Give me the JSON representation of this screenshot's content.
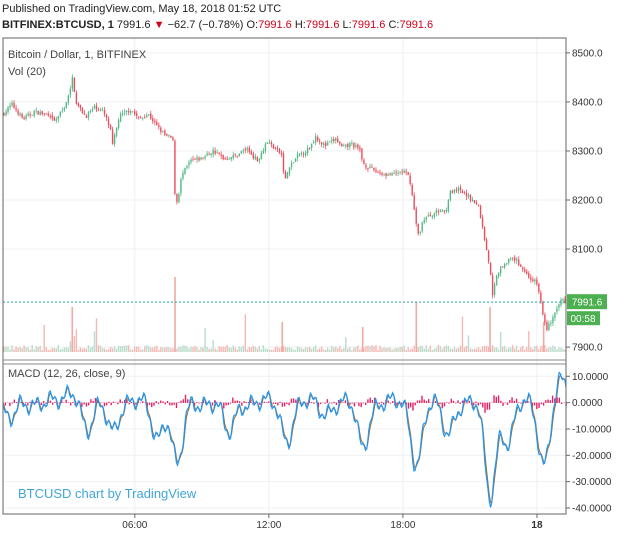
{
  "header": {
    "published": "Published on TradingView.com, May 18, 2018 01:52 UTC",
    "symbol": "BITFINEX:BTCUSD, 1",
    "last": "7991.6",
    "change_arrow": "▼",
    "change": "−62.7 (−0.78%)",
    "o_label": "O:",
    "o_value": "7991.6",
    "h_label": "H:",
    "h_value": "7991.6",
    "l_label": "L:",
    "l_value": "7991.6",
    "c_label": "C:",
    "c_value": "7991.6"
  },
  "colors": {
    "up": "#53b987",
    "down": "#eb4d5c",
    "macd_line": "#2196f3",
    "signal_line": "#9e6e3a",
    "histogram": "#e91e63",
    "price_line": "#26a69a",
    "watermark": "#41a6d9"
  },
  "chart_data": [
    {
      "type": "candlestick",
      "title": "Bitcoin / Dollar, 1, BITFINEX",
      "volume_label": "Vol (20)",
      "ylim": [
        7890,
        8510
      ],
      "y_ticks": [
        "8500.0",
        "8400.0",
        "8300.0",
        "8200.0",
        "8100.0",
        "7900.0"
      ],
      "y_tick_values": [
        8500,
        8400,
        8300,
        8200,
        8100,
        7900
      ],
      "x_ticks": [
        "06:00",
        "12:00",
        "18:00",
        "18"
      ],
      "x_tick_hours": [
        6,
        12,
        18,
        24
      ],
      "x_range_hours": [
        0.1,
        25.3
      ],
      "current_price": "7991.6",
      "current_price_value": 7991.6,
      "countdown": "00:58",
      "close_path": [
        [
          0.1,
          8375
        ],
        [
          0.5,
          8395
        ],
        [
          1.0,
          8365
        ],
        [
          1.5,
          8380
        ],
        [
          2.0,
          8375
        ],
        [
          2.4,
          8360
        ],
        [
          2.8,
          8385
        ],
        [
          3.1,
          8420
        ],
        [
          3.2,
          8450
        ],
        [
          3.4,
          8395
        ],
        [
          3.8,
          8370
        ],
        [
          4.2,
          8390
        ],
        [
          4.6,
          8380
        ],
        [
          4.9,
          8345
        ],
        [
          5.0,
          8310
        ],
        [
          5.3,
          8370
        ],
        [
          5.8,
          8385
        ],
        [
          6.2,
          8365
        ],
        [
          6.6,
          8375
        ],
        [
          7.0,
          8350
        ],
        [
          7.4,
          8330
        ],
        [
          7.7,
          8325
        ],
        [
          7.8,
          8210
        ],
        [
          7.9,
          8195
        ],
        [
          8.1,
          8250
        ],
        [
          8.5,
          8280
        ],
        [
          9.0,
          8285
        ],
        [
          9.5,
          8300
        ],
        [
          10.0,
          8285
        ],
        [
          10.5,
          8290
        ],
        [
          11.0,
          8305
        ],
        [
          11.5,
          8280
        ],
        [
          11.9,
          8320
        ],
        [
          12.3,
          8305
        ],
        [
          12.6,
          8290
        ],
        [
          12.7,
          8235
        ],
        [
          12.9,
          8265
        ],
        [
          13.3,
          8290
        ],
        [
          13.8,
          8305
        ],
        [
          14.1,
          8330
        ],
        [
          14.5,
          8310
        ],
        [
          15.0,
          8325
        ],
        [
          15.3,
          8305
        ],
        [
          15.7,
          8315
        ],
        [
          16.1,
          8300
        ],
        [
          16.2,
          8275
        ],
        [
          16.5,
          8265
        ],
        [
          17.0,
          8255
        ],
        [
          17.5,
          8250
        ],
        [
          18.0,
          8260
        ],
        [
          18.3,
          8245
        ],
        [
          18.6,
          8150
        ],
        [
          18.7,
          8125
        ],
        [
          18.9,
          8160
        ],
        [
          19.3,
          8170
        ],
        [
          19.7,
          8180
        ],
        [
          19.9,
          8175
        ],
        [
          20.1,
          8215
        ],
        [
          20.5,
          8220
        ],
        [
          21.0,
          8205
        ],
        [
          21.4,
          8185
        ],
        [
          21.7,
          8110
        ],
        [
          21.9,
          8060
        ],
        [
          22.0,
          8000
        ],
        [
          22.2,
          8050
        ],
        [
          22.6,
          8075
        ],
        [
          23.0,
          8080
        ],
        [
          23.3,
          8065
        ],
        [
          23.6,
          8045
        ],
        [
          24.0,
          8030
        ],
        [
          24.2,
          7985
        ],
        [
          24.4,
          7935
        ],
        [
          24.6,
          7950
        ],
        [
          24.9,
          7975
        ],
        [
          25.1,
          8000
        ],
        [
          25.3,
          7991.6
        ]
      ]
    },
    {
      "type": "line",
      "title": "MACD (12, 26, close, 9)",
      "ylim": [
        -40,
        12
      ],
      "y_ticks": [
        "10.0000",
        "0.0000",
        "-10.0000",
        "-20.0000",
        "-30.0000",
        "-40.0000"
      ],
      "y_tick_values": [
        10,
        0,
        -10,
        -20,
        -30,
        -40
      ],
      "watermark": "BTCUSD chart by TradingView",
      "macd_dips": [
        [
          0.4,
          -7
        ],
        [
          3.2,
          5
        ],
        [
          3.9,
          -11
        ],
        [
          5.0,
          -10
        ],
        [
          7.0,
          -13
        ],
        [
          7.9,
          -24
        ],
        [
          10.2,
          -12
        ],
        [
          12.8,
          -14
        ],
        [
          14.5,
          -4
        ],
        [
          16.2,
          -17
        ],
        [
          18.6,
          -23
        ],
        [
          20.0,
          -12
        ],
        [
          21.9,
          -36
        ],
        [
          22.7,
          -15
        ],
        [
          24.3,
          -23
        ],
        [
          25.1,
          8
        ]
      ]
    }
  ]
}
